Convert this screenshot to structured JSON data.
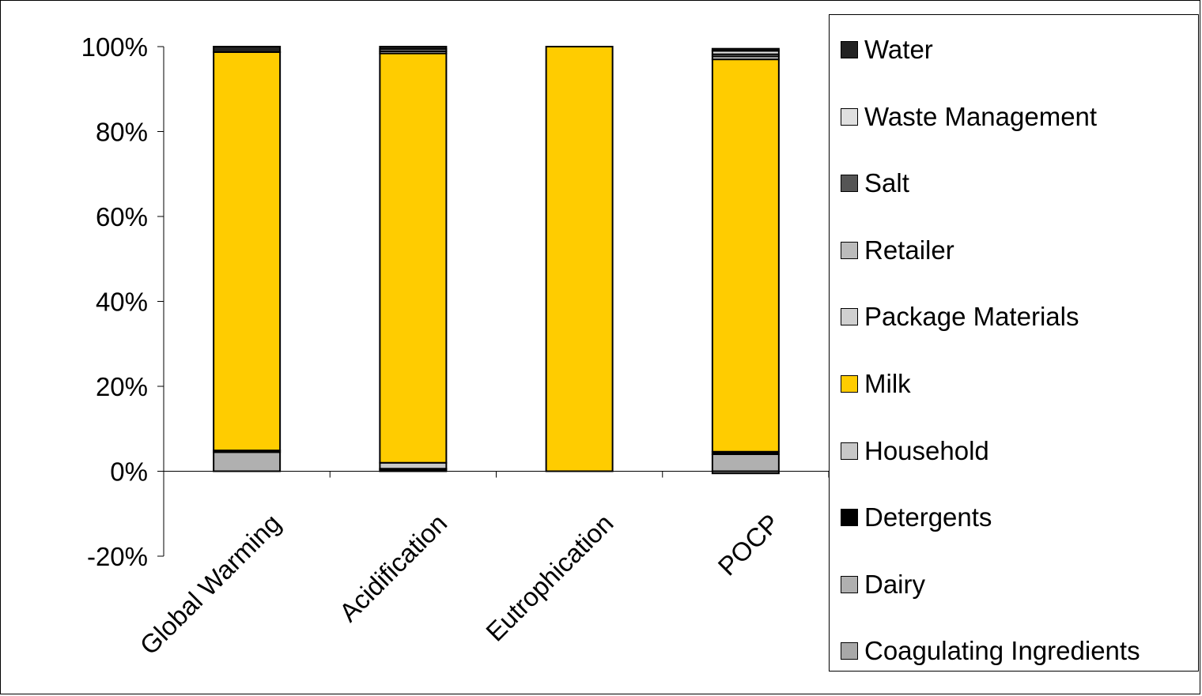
{
  "chart_data": {
    "type": "bar",
    "stacked": true,
    "percent": true,
    "categories": [
      "Global Warming",
      "Acidification",
      "Eutrophication",
      "POCP"
    ],
    "ylim": [
      -20,
      100
    ],
    "yticks": [
      -20,
      0,
      20,
      40,
      60,
      80,
      100
    ],
    "ytick_labels": [
      "-20%",
      "0%",
      "20%",
      "40%",
      "60%",
      "80%",
      "100%"
    ],
    "legend_position": "right",
    "legend_order": [
      "Water",
      "Waste Management",
      "Salt",
      "Retailer",
      "Package Materials",
      "Milk",
      "Household",
      "Detergents",
      "Dairy",
      "Coagulating Ingredients"
    ],
    "series": [
      {
        "name": "Coagulating Ingredients",
        "color": "#a8a8a8",
        "values": [
          0,
          0,
          0,
          -0.5
        ]
      },
      {
        "name": "Dairy",
        "color": "#b0b0b0",
        "values": [
          4.5,
          0.4,
          0,
          4.0
        ]
      },
      {
        "name": "Detergents",
        "color": "#000000",
        "values": [
          0.4,
          0.2,
          0,
          0.6
        ]
      },
      {
        "name": "Household",
        "color": "#c8c8c8",
        "values": [
          0,
          1.4,
          0,
          0
        ]
      },
      {
        "name": "Milk",
        "color": "#ffcc00",
        "values": [
          93.8,
          96.4,
          100,
          92.4
        ]
      },
      {
        "name": "Package Materials",
        "color": "#d0d0d0",
        "values": [
          0,
          0.5,
          0,
          0.7
        ]
      },
      {
        "name": "Retailer",
        "color": "#bbbbbb",
        "values": [
          0,
          0,
          0,
          0.5
        ]
      },
      {
        "name": "Salt",
        "color": "#555555",
        "values": [
          0,
          0,
          0,
          0
        ]
      },
      {
        "name": "Waste Management",
        "color": "#e0e0e0",
        "values": [
          0,
          0.5,
          0,
          0.8
        ]
      },
      {
        "name": "Water",
        "color": "#222222",
        "values": [
          1.3,
          0.6,
          0,
          0.5
        ]
      }
    ]
  }
}
